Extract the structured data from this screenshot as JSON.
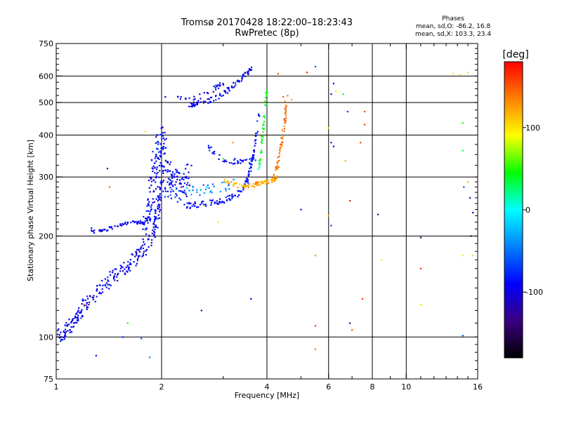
{
  "chart_data": {
    "type": "scatter",
    "title": "Tromsø 20170428 18:22:00–18:23:43",
    "subtitle": "RwPretec (8p)",
    "xlabel": "Frequency [MHz]",
    "ylabel": "Stationary phase Virtual Height [km]",
    "x_scale": "log",
    "y_scale": "log",
    "xlim": [
      1,
      16
    ],
    "ylim": [
      75,
      750
    ],
    "x_ticks": [
      1,
      2,
      4,
      6,
      8,
      10,
      16
    ],
    "x_tick_labels": [
      "1",
      "2",
      "4",
      "6",
      "8",
      "10",
      "16"
    ],
    "y_ticks": [
      75,
      100,
      200,
      300,
      400,
      500,
      600,
      750
    ],
    "y_tick_labels": [
      "75",
      "100",
      "200",
      "300",
      "400",
      "500",
      "600",
      "750"
    ],
    "grid": true,
    "colorbar": {
      "label": "[deg]",
      "range": [
        -180,
        180
      ],
      "ticks": [
        -100,
        0,
        100
      ],
      "tick_labels": [
        "-100",
        "0",
        "100"
      ],
      "colors": [
        "#000000",
        "#3a0080",
        "#0000ff",
        "#0080ff",
        "#00ffff",
        "#00ff00",
        "#ffff00",
        "#ff8000",
        "#ff0000"
      ]
    },
    "stats": {
      "heading": "Phases",
      "line_o": "mean, sd,O: -86.2, 16.8",
      "line_x": "mean, sd,X: 103.3, 23.4"
    },
    "traces": [
      {
        "freq": [
          1.0,
          1.05,
          1.1,
          1.15,
          1.2,
          1.3,
          1.4,
          1.5,
          1.6,
          1.7,
          1.8,
          1.9,
          1.95,
          2.0
        ],
        "height": [
          100,
          102,
          108,
          115,
          125,
          135,
          145,
          155,
          165,
          175,
          185,
          200,
          240,
          290
        ],
        "spread": 0.05,
        "count": 260,
        "phase": -95
      },
      {
        "freq": [
          1.25,
          1.3,
          1.4,
          1.5,
          1.6,
          1.7,
          1.8
        ],
        "height": [
          210,
          205,
          210,
          215,
          218,
          220,
          220
        ],
        "spread": 0.012,
        "count": 60,
        "phase": -100
      },
      {
        "freq": [
          1.8,
          1.85,
          1.9,
          1.95,
          2.0,
          2.05,
          2.1,
          2.2,
          2.3,
          2.4
        ],
        "height": [
          200,
          240,
          300,
          360,
          390,
          330,
          280,
          300,
          270,
          320
        ],
        "spread": 0.09,
        "count": 230,
        "phase": -92
      },
      {
        "freq": [
          2.3,
          2.5,
          2.8,
          3.0,
          3.2,
          3.4,
          3.5,
          3.6,
          3.7,
          3.8
        ],
        "height": [
          245,
          248,
          252,
          255,
          262,
          275,
          290,
          320,
          380,
          460
        ],
        "spread": 0.02,
        "count": 120,
        "phase": -88
      },
      {
        "freq": [
          2.4,
          2.5,
          2.7,
          2.9,
          3.1,
          3.3,
          3.5,
          3.6
        ],
        "height": [
          490,
          495,
          505,
          520,
          545,
          575,
          610,
          630
        ],
        "spread": 0.018,
        "count": 90,
        "phase": -95
      },
      {
        "freq": [
          2.2,
          2.4,
          2.6,
          2.8,
          2.9,
          3.0
        ],
        "height": [
          520,
          505,
          525,
          545,
          560,
          570
        ],
        "spread": 0.02,
        "count": 30,
        "phase": -100
      },
      {
        "freq": [
          2.7,
          2.9,
          3.1,
          3.3,
          3.5,
          3.6,
          3.7
        ],
        "height": [
          370,
          345,
          335,
          333,
          333,
          335,
          340
        ],
        "spread": 0.02,
        "count": 45,
        "phase": -90
      },
      {
        "freq": [
          2.1,
          2.4,
          2.6,
          2.8,
          3.0,
          3.2
        ],
        "height": [
          265,
          270,
          275,
          278,
          280,
          285
        ],
        "spread": 0.04,
        "count": 40,
        "phase": -40
      },
      {
        "freq": [
          3.0,
          3.2,
          3.4,
          3.6,
          3.8,
          4.0,
          4.2,
          4.3
        ],
        "height": [
          295,
          285,
          280,
          282,
          287,
          290,
          295,
          300
        ],
        "spread": 0.015,
        "count": 80,
        "phase": 120
      },
      {
        "freq": [
          4.2,
          4.3,
          4.4,
          4.5,
          4.55
        ],
        "height": [
          300,
          330,
          380,
          440,
          520
        ],
        "spread": 0.025,
        "count": 60,
        "phase": 140
      },
      {
        "freq": [
          3.8,
          3.85,
          3.9,
          3.95,
          4.0
        ],
        "height": [
          320,
          360,
          420,
          480,
          540
        ],
        "spread": 0.02,
        "count": 50,
        "phase": 40
      }
    ],
    "scatter_points": [
      {
        "freq": 2.05,
        "height": 520,
        "phase": -100
      },
      {
        "freq": 1.4,
        "height": 318,
        "phase": -120
      },
      {
        "freq": 1.42,
        "height": 280,
        "phase": 140
      },
      {
        "freq": 1.8,
        "height": 410,
        "phase": 100
      },
      {
        "freq": 3.2,
        "height": 380,
        "phase": 130
      },
      {
        "freq": 3.0,
        "height": 340,
        "phase": 40
      },
      {
        "freq": 2.9,
        "height": 220,
        "phase": 100
      },
      {
        "freq": 4.3,
        "height": 610,
        "phase": 150
      },
      {
        "freq": 4.45,
        "height": 520,
        "phase": 150
      },
      {
        "freq": 4.7,
        "height": 510,
        "phase": 120
      },
      {
        "freq": 5.2,
        "height": 615,
        "phase": 170
      },
      {
        "freq": 5.5,
        "height": 640,
        "phase": -60
      },
      {
        "freq": 5.5,
        "height": 175,
        "phase": 130
      },
      {
        "freq": 5.5,
        "height": 108,
        "phase": 160
      },
      {
        "freq": 5.5,
        "height": 92,
        "phase": 140
      },
      {
        "freq": 5.0,
        "height": 240,
        "phase": -90
      },
      {
        "freq": 6.0,
        "height": 420,
        "phase": 100
      },
      {
        "freq": 6.2,
        "height": 570,
        "phase": -90
      },
      {
        "freq": 6.1,
        "height": 530,
        "phase": -100
      },
      {
        "freq": 6.3,
        "height": 540,
        "phase": 100
      },
      {
        "freq": 6.1,
        "height": 380,
        "phase": -100
      },
      {
        "freq": 6.2,
        "height": 370,
        "phase": -90
      },
      {
        "freq": 6.6,
        "height": 530,
        "phase": 40
      },
      {
        "freq": 6.8,
        "height": 470,
        "phase": -70
      },
      {
        "freq": 6.9,
        "height": 255,
        "phase": 170
      },
      {
        "freq": 6.7,
        "height": 335,
        "phase": 120
      },
      {
        "freq": 6.9,
        "height": 110,
        "phase": -130
      },
      {
        "freq": 7.0,
        "height": 105,
        "phase": 150
      },
      {
        "freq": 7.4,
        "height": 380,
        "phase": 160
      },
      {
        "freq": 7.6,
        "height": 470,
        "phase": 160
      },
      {
        "freq": 7.6,
        "height": 430,
        "phase": 160
      },
      {
        "freq": 7.5,
        "height": 130,
        "phase": 160
      },
      {
        "freq": 6.0,
        "height": 230,
        "phase": 120
      },
      {
        "freq": 6.1,
        "height": 215,
        "phase": -70
      },
      {
        "freq": 8.3,
        "height": 232,
        "phase": -130
      },
      {
        "freq": 8.5,
        "height": 170,
        "phase": 100
      },
      {
        "freq": 11.0,
        "height": 198,
        "phase": -140
      },
      {
        "freq": 11.0,
        "height": 160,
        "phase": 170
      },
      {
        "freq": 11.0,
        "height": 125,
        "phase": 100
      },
      {
        "freq": 13.6,
        "height": 610,
        "phase": 100
      },
      {
        "freq": 14.2,
        "height": 605,
        "phase": 100
      },
      {
        "freq": 15.0,
        "height": 615,
        "phase": 100
      },
      {
        "freq": 14.5,
        "height": 435,
        "phase": 50
      },
      {
        "freq": 14.5,
        "height": 360,
        "phase": 30
      },
      {
        "freq": 15.0,
        "height": 290,
        "phase": 120
      },
      {
        "freq": 14.6,
        "height": 280,
        "phase": -60
      },
      {
        "freq": 15.2,
        "height": 260,
        "phase": -130
      },
      {
        "freq": 15.5,
        "height": 235,
        "phase": -100
      },
      {
        "freq": 15.3,
        "height": 200,
        "phase": -150
      },
      {
        "freq": 14.5,
        "height": 175,
        "phase": 100
      },
      {
        "freq": 15.5,
        "height": 175,
        "phase": 100
      },
      {
        "freq": 14.5,
        "height": 101,
        "phase": -60
      },
      {
        "freq": 2.6,
        "height": 120,
        "phase": -110
      },
      {
        "freq": 3.6,
        "height": 130,
        "phase": -100
      },
      {
        "freq": 1.75,
        "height": 99,
        "phase": -60
      },
      {
        "freq": 1.85,
        "height": 87,
        "phase": -40
      },
      {
        "freq": 1.3,
        "height": 88,
        "phase": -100
      },
      {
        "freq": 1.55,
        "height": 100,
        "phase": -70
      },
      {
        "freq": 1.2,
        "height": 125,
        "phase": 140
      },
      {
        "freq": 1.6,
        "height": 110,
        "phase": 50
      }
    ]
  }
}
